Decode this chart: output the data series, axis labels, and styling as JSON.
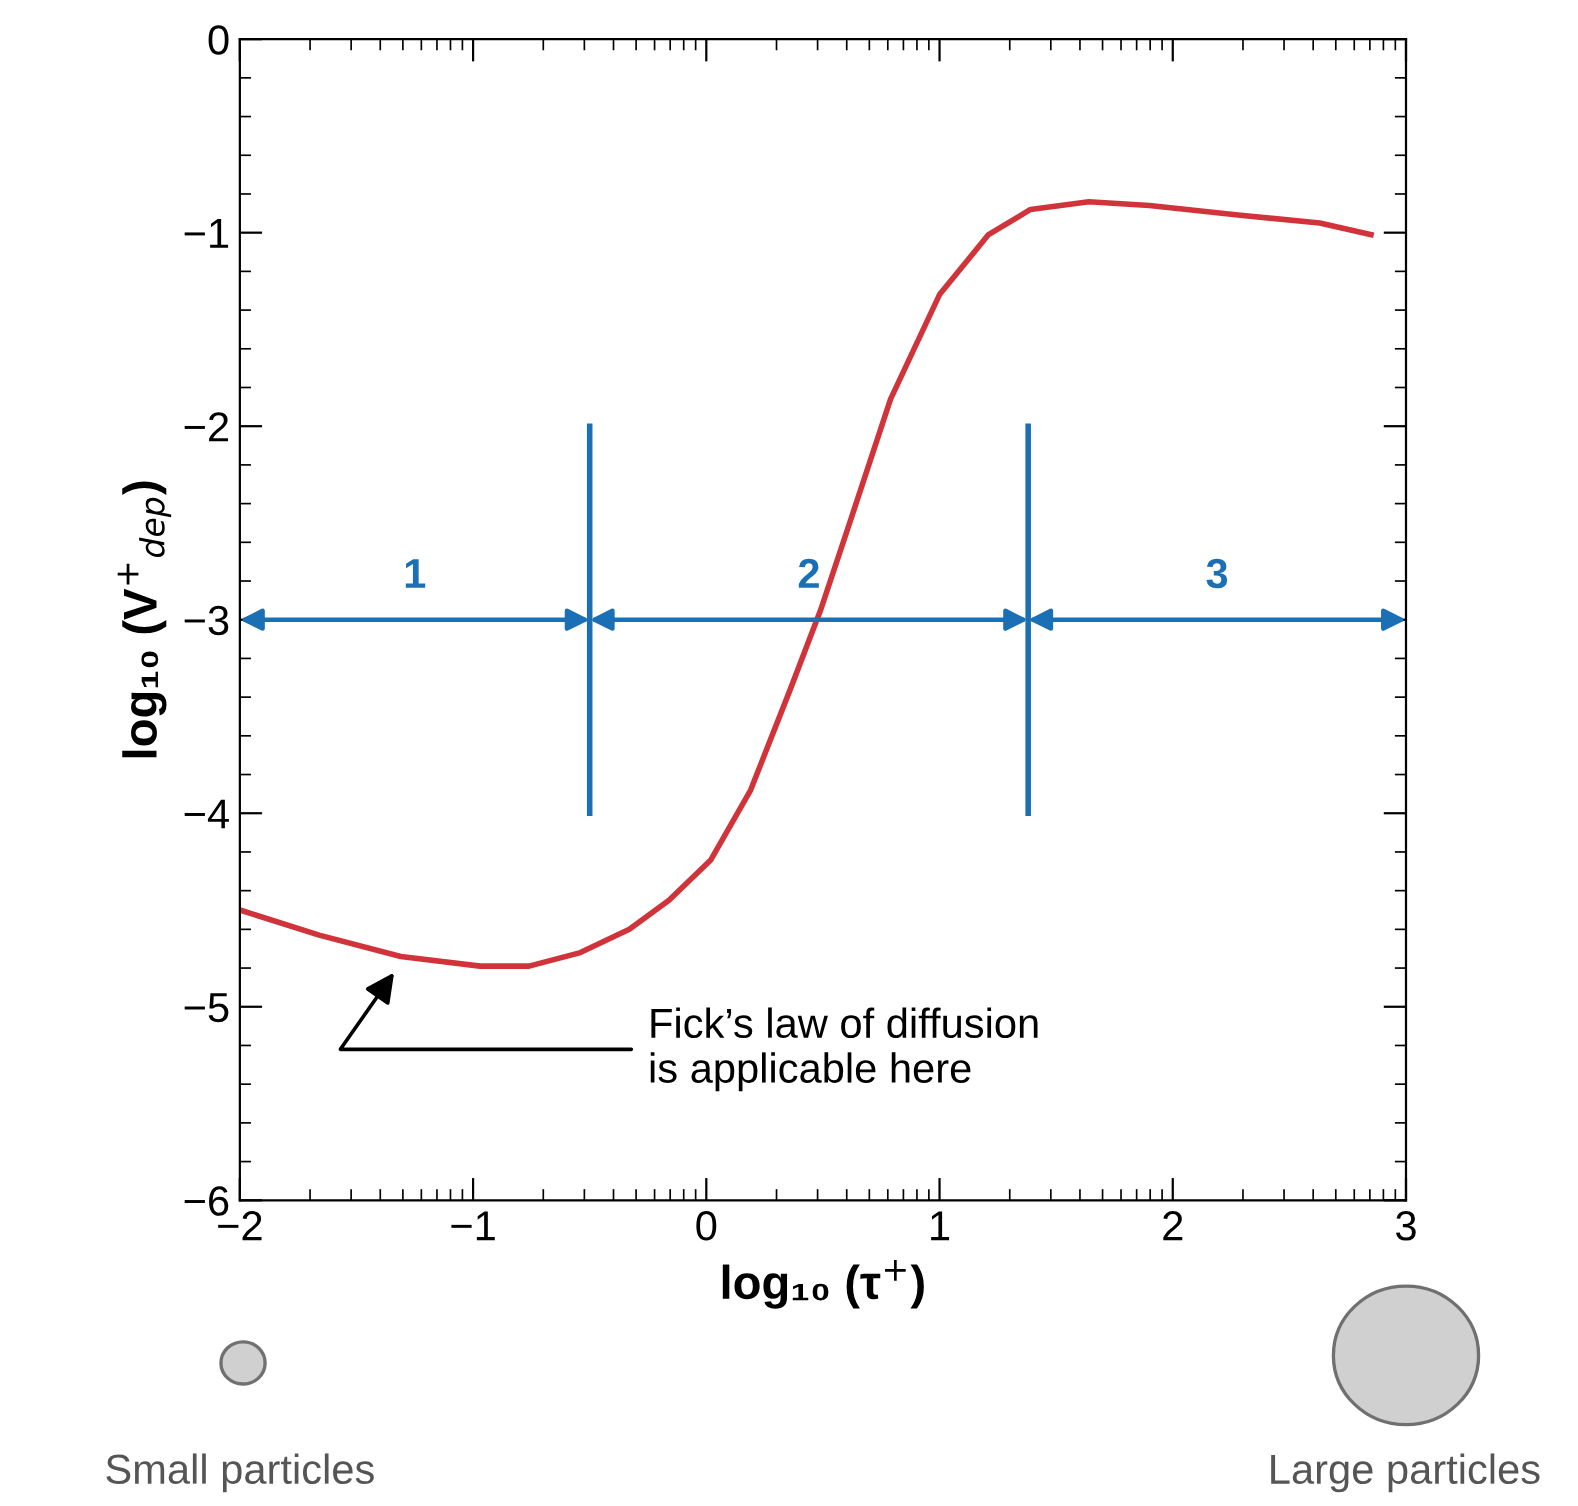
{
  "chart_data": {
    "type": "line",
    "xlabel": "log₁₀ (τ$^{+}$)",
    "ylabel": "log₁₀ (V$^{+}$$_{dep}$)",
    "x": [
      -2,
      -1.66,
      -1.31,
      -0.97,
      -0.76,
      -0.54,
      -0.33,
      -0.16,
      0.02,
      0.19,
      0.36,
      0.49,
      0.62,
      0.79,
      1.0,
      1.21,
      1.39,
      1.64,
      1.9,
      2.29,
      2.63,
      2.85
    ],
    "series": [
      {
        "color": "#d0343a",
        "values": [
          -4.5,
          -4.63,
          -4.74,
          -4.79,
          -4.79,
          -4.72,
          -4.6,
          -4.45,
          -4.24,
          -3.88,
          -3.36,
          -2.95,
          -2.48,
          -1.86,
          -1.32,
          -1.01,
          -0.88,
          -0.84,
          -0.86,
          -0.91,
          -0.95,
          -1.01
        ]
      }
    ],
    "xlim": [
      -2,
      3
    ],
    "ylim": [
      -6,
      0
    ],
    "xticks": [
      -2,
      -1,
      0,
      1,
      2,
      3
    ],
    "yticks": [
      -6,
      -5,
      -4,
      -3,
      -2,
      -1,
      0
    ],
    "ref_lines": [
      {
        "axis": "x",
        "value": -0.5,
        "color": "#1a6fb5"
      },
      {
        "axis": "x",
        "value": 1.38,
        "color": "#1a6fb5"
      }
    ],
    "annotations": [
      "1",
      "2",
      "3",
      "Fick’s law of diffusion\nis applicable here",
      "Small particles",
      "Large particles"
    ],
    "grid": false,
    "marker": "none",
    "line_style": "solid"
  }
}
